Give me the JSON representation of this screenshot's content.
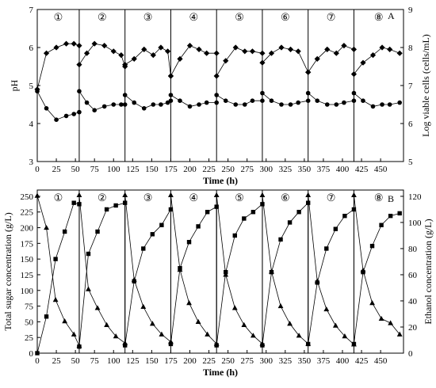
{
  "chart_data": [
    {
      "panel": "A",
      "type": "line",
      "xlabel": "Time (h)",
      "ylabel": "pH",
      "y2label": "Log viable cells (cells/mL)",
      "xlim": [
        0,
        480
      ],
      "ylim": [
        3,
        7
      ],
      "y2lim": [
        5,
        9
      ],
      "xticks": [
        "0",
        "25",
        "50",
        "75",
        "100",
        "125",
        "150",
        "175",
        "200",
        "225",
        "250",
        "275",
        "300",
        "325",
        "350",
        "375",
        "400",
        "425",
        "450"
      ],
      "yticks": [
        "3",
        "4",
        "5",
        "6",
        "7"
      ],
      "y2ticks": [
        "5",
        "6",
        "7",
        "8",
        "9"
      ],
      "batch_boundaries": [
        55,
        115,
        175,
        235,
        295,
        355,
        415
      ],
      "batch_labels": [
        "①",
        "②",
        "③",
        "④",
        "⑤",
        "⑥",
        "⑦",
        "⑧"
      ],
      "grid": false,
      "series": [
        {
          "marker": "diamond",
          "axis": "right",
          "x": [
            0,
            12,
            25,
            38,
            48,
            55,
            55,
            65,
            75,
            88,
            100,
            110,
            115,
            115,
            127,
            140,
            152,
            162,
            171,
            175,
            175,
            187,
            200,
            212,
            222,
            235,
            235,
            247,
            260,
            272,
            282,
            295,
            295,
            307,
            320,
            332,
            342,
            355,
            355,
            367,
            380,
            392,
            402,
            415,
            415,
            427,
            440,
            452,
            462,
            475
          ],
          "values": [
            6.9,
            7.85,
            8.0,
            8.1,
            8.1,
            8.05,
            7.55,
            7.85,
            8.1,
            8.05,
            7.9,
            7.8,
            7.5,
            7.55,
            7.7,
            7.95,
            7.8,
            8.0,
            7.9,
            7.25,
            7.25,
            7.7,
            8.05,
            7.95,
            7.85,
            7.85,
            7.25,
            7.65,
            8.0,
            7.9,
            7.9,
            7.85,
            7.6,
            7.85,
            8.0,
            7.95,
            7.9,
            7.35,
            7.35,
            7.7,
            7.95,
            7.85,
            8.05,
            7.95,
            7.3,
            7.6,
            7.8,
            8.0,
            7.95,
            7.85
          ]
        },
        {
          "marker": "circle",
          "axis": "left",
          "x": [
            0,
            12,
            25,
            38,
            48,
            55,
            55,
            65,
            75,
            88,
            100,
            110,
            115,
            115,
            127,
            140,
            152,
            162,
            171,
            175,
            175,
            187,
            200,
            212,
            222,
            235,
            235,
            247,
            260,
            272,
            282,
            295,
            295,
            307,
            320,
            332,
            342,
            355,
            355,
            367,
            380,
            392,
            402,
            415,
            415,
            427,
            440,
            452,
            462,
            475
          ],
          "values": [
            4.85,
            4.4,
            4.1,
            4.2,
            4.25,
            4.3,
            4.85,
            4.55,
            4.35,
            4.45,
            4.5,
            4.5,
            4.5,
            4.75,
            4.55,
            4.4,
            4.5,
            4.5,
            4.55,
            4.6,
            4.75,
            4.6,
            4.45,
            4.5,
            4.55,
            4.55,
            4.75,
            4.6,
            4.5,
            4.5,
            4.6,
            4.6,
            4.8,
            4.6,
            4.5,
            4.5,
            4.55,
            4.6,
            4.8,
            4.6,
            4.5,
            4.5,
            4.55,
            4.6,
            4.8,
            4.6,
            4.45,
            4.5,
            4.5,
            4.55
          ]
        }
      ]
    },
    {
      "panel": "B",
      "type": "line",
      "xlabel": "Time (h)",
      "ylabel": "Total sugar concentration (g/L)",
      "y2label": "Ethanol concentration (g/L)",
      "xlim": [
        0,
        480
      ],
      "ylim": [
        0,
        260
      ],
      "y2lim": [
        0,
        124.8
      ],
      "xticks": [
        "0",
        "25",
        "50",
        "75",
        "100",
        "125",
        "150",
        "175",
        "200",
        "225",
        "250",
        "275",
        "300",
        "325",
        "350",
        "375",
        "400",
        "425",
        "450"
      ],
      "yticks": [
        "0",
        "25",
        "50",
        "75",
        "100",
        "125",
        "150",
        "175",
        "200",
        "225",
        "250"
      ],
      "y2ticks": [
        "0",
        "20",
        "40",
        "60",
        "80",
        "100",
        "120"
      ],
      "batch_boundaries": [
        55,
        115,
        175,
        235,
        295,
        355,
        415
      ],
      "batch_labels": [
        "①",
        "②",
        "③",
        "④",
        "⑤",
        "⑥",
        "⑦",
        "⑧"
      ],
      "grid": false,
      "series": [
        {
          "marker": "triangle",
          "axis": "left",
          "x": [
            0,
            12,
            24,
            36,
            48,
            55,
            55,
            67,
            79,
            91,
            103,
            115,
            115,
            127,
            139,
            151,
            163,
            175,
            175,
            187,
            199,
            211,
            223,
            235,
            235,
            247,
            259,
            271,
            283,
            295,
            295,
            307,
            319,
            331,
            343,
            355,
            355,
            367,
            379,
            391,
            403,
            415,
            415,
            427,
            439,
            451,
            463,
            475
          ],
          "values": [
            251,
            200,
            85,
            51,
            30,
            12,
            252,
            102,
            72,
            45,
            27,
            16,
            252,
            117,
            74,
            47,
            30,
            18,
            252,
            133,
            80,
            50,
            30,
            15,
            252,
            125,
            72,
            45,
            28,
            15,
            252,
            130,
            75,
            47,
            28,
            15,
            252,
            115,
            70,
            44,
            27,
            14,
            252,
            132,
            80,
            55,
            48,
            30
          ]
        },
        {
          "marker": "square",
          "axis": "right",
          "x": [
            0,
            12,
            24,
            36,
            48,
            55,
            55,
            67,
            79,
            91,
            103,
            115,
            115,
            127,
            139,
            151,
            163,
            175,
            175,
            187,
            199,
            211,
            223,
            235,
            235,
            247,
            259,
            271,
            283,
            295,
            295,
            307,
            319,
            331,
            343,
            355,
            355,
            367,
            379,
            391,
            403,
            415,
            415,
            427,
            439,
            451,
            463,
            475
          ],
          "values": [
            0,
            28,
            72,
            93,
            115,
            114,
            5,
            76,
            93,
            110,
            113,
            115,
            6,
            55,
            80,
            91,
            98,
            110,
            7,
            65,
            85,
            97,
            108,
            112,
            6,
            62,
            90,
            103,
            108,
            114,
            6,
            62,
            87,
            100,
            108,
            115,
            7,
            54,
            80,
            95,
            105,
            110,
            7,
            62,
            82,
            98,
            105,
            107
          ]
        }
      ]
    }
  ]
}
